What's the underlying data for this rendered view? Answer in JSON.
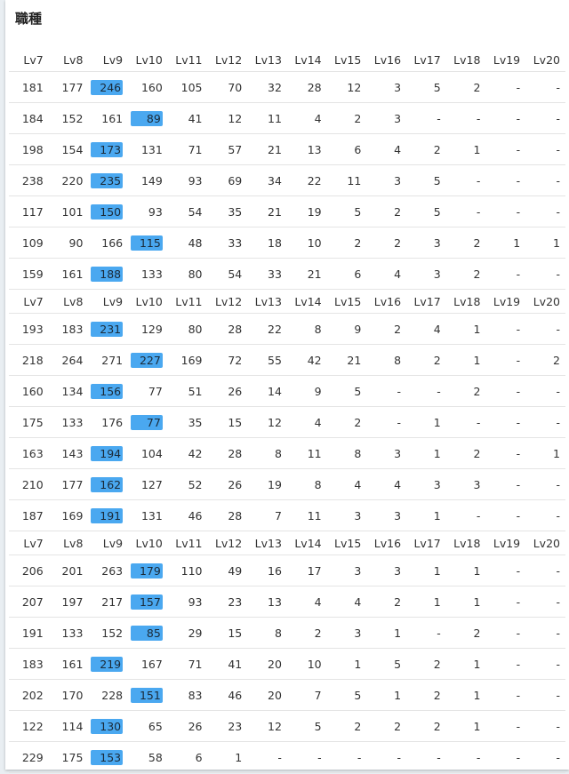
{
  "title": "職種",
  "blocks": [
    {
      "headers": [
        "Lv7",
        "Lv8",
        "Lv9",
        "Lv10",
        "Lv11",
        "Lv12",
        "Lv13",
        "Lv14",
        "Lv15",
        "Lv16",
        "Lv17",
        "Lv18",
        "Lv19",
        "Lv20"
      ],
      "highlighted_columns": [
        2,
        3,
        2,
        2,
        2,
        3,
        2
      ],
      "rows": [
        [
          "181",
          "177",
          "246",
          "160",
          "105",
          "70",
          "32",
          "28",
          "12",
          "3",
          "5",
          "2",
          "-",
          "-"
        ],
        [
          "184",
          "152",
          "161",
          "89",
          "41",
          "12",
          "11",
          "4",
          "2",
          "3",
          "-",
          "-",
          "-",
          "-"
        ],
        [
          "198",
          "154",
          "173",
          "131",
          "71",
          "57",
          "21",
          "13",
          "6",
          "4",
          "2",
          "1",
          "-",
          "-"
        ],
        [
          "238",
          "220",
          "235",
          "149",
          "93",
          "69",
          "34",
          "22",
          "11",
          "3",
          "5",
          "-",
          "-",
          "-"
        ],
        [
          "117",
          "101",
          "150",
          "93",
          "54",
          "35",
          "21",
          "19",
          "5",
          "2",
          "5",
          "-",
          "-",
          "-"
        ],
        [
          "109",
          "90",
          "166",
          "115",
          "48",
          "33",
          "18",
          "10",
          "2",
          "2",
          "3",
          "2",
          "1",
          "1"
        ],
        [
          "159",
          "161",
          "188",
          "133",
          "80",
          "54",
          "33",
          "21",
          "6",
          "4",
          "3",
          "2",
          "-",
          "-"
        ]
      ]
    },
    {
      "headers": [
        "Lv7",
        "Lv8",
        "Lv9",
        "Lv10",
        "Lv11",
        "Lv12",
        "Lv13",
        "Lv14",
        "Lv15",
        "Lv16",
        "Lv17",
        "Lv18",
        "Lv19",
        "Lv20"
      ],
      "highlighted_columns": [
        2,
        3,
        2,
        3,
        2,
        2,
        2
      ],
      "rows": [
        [
          "193",
          "183",
          "231",
          "129",
          "80",
          "28",
          "22",
          "8",
          "9",
          "2",
          "4",
          "1",
          "-",
          "-"
        ],
        [
          "218",
          "264",
          "271",
          "227",
          "169",
          "72",
          "55",
          "42",
          "21",
          "8",
          "2",
          "1",
          "-",
          "2"
        ],
        [
          "160",
          "134",
          "156",
          "77",
          "51",
          "26",
          "14",
          "9",
          "5",
          "-",
          "-",
          "2",
          "-",
          "-"
        ],
        [
          "175",
          "133",
          "176",
          "77",
          "35",
          "15",
          "12",
          "4",
          "2",
          "-",
          "1",
          "-",
          "-",
          "-"
        ],
        [
          "163",
          "143",
          "194",
          "104",
          "42",
          "28",
          "8",
          "11",
          "8",
          "3",
          "1",
          "2",
          "-",
          "1"
        ],
        [
          "210",
          "177",
          "162",
          "127",
          "52",
          "26",
          "19",
          "8",
          "4",
          "4",
          "3",
          "3",
          "-",
          "-"
        ],
        [
          "187",
          "169",
          "191",
          "131",
          "46",
          "28",
          "7",
          "11",
          "3",
          "3",
          "1",
          "-",
          "-",
          "-"
        ]
      ]
    },
    {
      "headers": [
        "Lv7",
        "Lv8",
        "Lv9",
        "Lv10",
        "Lv11",
        "Lv12",
        "Lv13",
        "Lv14",
        "Lv15",
        "Lv16",
        "Lv17",
        "Lv18",
        "Lv19",
        "Lv20"
      ],
      "highlighted_columns": [
        3,
        3,
        3,
        2,
        3,
        2,
        2
      ],
      "rows": [
        [
          "206",
          "201",
          "263",
          "179",
          "110",
          "49",
          "16",
          "17",
          "3",
          "3",
          "1",
          "1",
          "-",
          "-"
        ],
        [
          "207",
          "197",
          "217",
          "157",
          "93",
          "23",
          "13",
          "4",
          "4",
          "2",
          "1",
          "1",
          "-",
          "-"
        ],
        [
          "191",
          "133",
          "152",
          "85",
          "29",
          "15",
          "8",
          "2",
          "3",
          "1",
          "-",
          "2",
          "-",
          "-"
        ],
        [
          "183",
          "161",
          "219",
          "167",
          "71",
          "41",
          "20",
          "10",
          "1",
          "5",
          "2",
          "1",
          "-",
          "-"
        ],
        [
          "202",
          "170",
          "228",
          "151",
          "83",
          "46",
          "20",
          "7",
          "5",
          "1",
          "2",
          "1",
          "-",
          "-"
        ],
        [
          "122",
          "114",
          "130",
          "65",
          "26",
          "23",
          "12",
          "5",
          "2",
          "2",
          "2",
          "1",
          "-",
          "-"
        ],
        [
          "229",
          "175",
          "153",
          "58",
          "6",
          "1",
          "-",
          "-",
          "-",
          "-",
          "-",
          "-",
          "-",
          "-"
        ]
      ]
    }
  ]
}
